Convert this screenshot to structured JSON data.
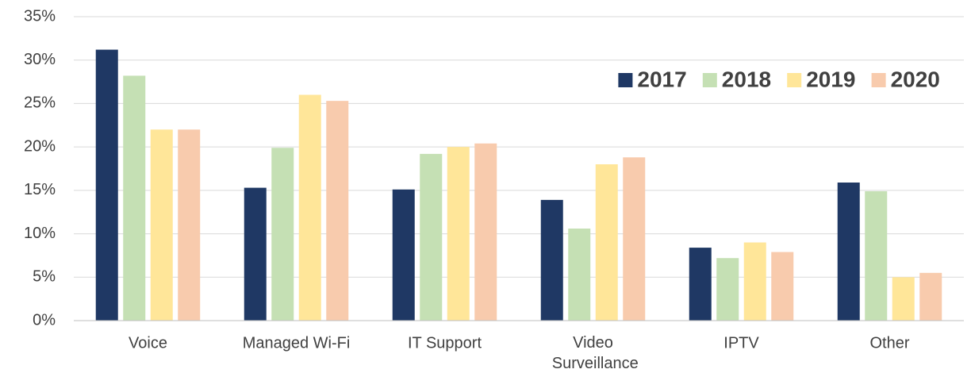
{
  "chart_data": {
    "type": "bar",
    "categories": [
      "Voice",
      "Managed Wi-Fi",
      "IT Support",
      "Video Surveillance",
      "IPTV",
      "Other"
    ],
    "series": [
      {
        "name": "2017",
        "color": "#1f3864",
        "values": [
          31.2,
          15.3,
          15.1,
          13.9,
          8.4,
          15.9
        ]
      },
      {
        "name": "2018",
        "color": "#c5e0b4",
        "values": [
          28.2,
          19.9,
          19.2,
          10.6,
          7.2,
          14.9
        ]
      },
      {
        "name": "2019",
        "color": "#ffe699",
        "values": [
          22,
          26,
          20,
          18,
          9,
          5
        ]
      },
      {
        "name": "2020",
        "color": "#f8cbad",
        "values": [
          22,
          25.3,
          20.4,
          18.8,
          7.9,
          5.5
        ]
      }
    ],
    "ylim": [
      0,
      35
    ],
    "yticks": [
      {
        "value": 0,
        "label": "0%"
      },
      {
        "value": 5,
        "label": "5%"
      },
      {
        "value": 10,
        "label": "10%"
      },
      {
        "value": 15,
        "label": "15%"
      },
      {
        "value": 20,
        "label": "20%"
      },
      {
        "value": 25,
        "label": "25%"
      },
      {
        "value": 30,
        "label": "30%"
      },
      {
        "value": 35,
        "label": "35%"
      }
    ],
    "grid": true,
    "legend": "top-right"
  }
}
